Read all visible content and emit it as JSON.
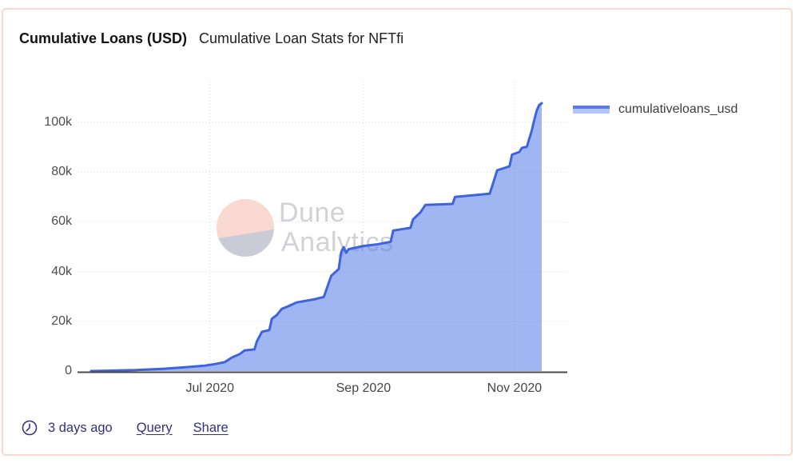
{
  "card": {
    "title": "Cumulative Loans (USD)",
    "subtitle": "Cumulative Loan Stats for NFTfi"
  },
  "legend": {
    "label": "cumulativeloans_usd"
  },
  "watermark": {
    "line1": "Dune",
    "line2": "Analytics"
  },
  "footer": {
    "updated": "3 days ago",
    "query": "Query",
    "share": "Share"
  },
  "colors": {
    "card_border": "#fbd6cd",
    "line": "#3e63dc",
    "fill": "rgba(91,130,234,0.58)",
    "legend_line": "#5b7ce8",
    "legend_fill": "#b3c5f4",
    "footer_text": "#33307e",
    "axis_line": "#4a4a4a",
    "grid_line": "#e2e2e2",
    "tick_label": "#4d4d4d",
    "watermark_pink": "#f9d8d1",
    "watermark_gray": "#c9ccd6",
    "watermark_text": "#d2d2d6"
  },
  "chart_data": {
    "type": "area",
    "title": "Cumulative Loan Stats for NFTfi",
    "series_name": "cumulativeloans_usd",
    "xlabel": "",
    "ylabel": "",
    "grid": true,
    "legend_position": "top-right",
    "x_domain": [
      "2020-05-14",
      "2020-11-12"
    ],
    "ylim": [
      0,
      110000
    ],
    "y_ticks": [
      {
        "label": "100k",
        "value": 100000
      },
      {
        "label": "80k",
        "value": 80000
      },
      {
        "label": "60k",
        "value": 60000
      },
      {
        "label": "40k",
        "value": 40000
      },
      {
        "label": "20k",
        "value": 20000
      },
      {
        "label": "0",
        "value": 0
      }
    ],
    "x_ticks": [
      {
        "label": "Jul 2020",
        "date": "2020-07-01"
      },
      {
        "label": "Sep 2020",
        "date": "2020-09-01"
      },
      {
        "label": "Nov 2020",
        "date": "2020-11-01"
      }
    ],
    "points": [
      [
        "2020-05-14",
        0
      ],
      [
        "2020-06-01",
        400
      ],
      [
        "2020-06-12",
        900
      ],
      [
        "2020-06-21",
        1500
      ],
      [
        "2020-06-29",
        2200
      ],
      [
        "2020-07-03",
        2800
      ],
      [
        "2020-07-07",
        3600
      ],
      [
        "2020-07-10",
        5500
      ],
      [
        "2020-07-13",
        6800
      ],
      [
        "2020-07-15",
        8300
      ],
      [
        "2020-07-19",
        8700
      ],
      [
        "2020-07-20",
        12000
      ],
      [
        "2020-07-22",
        15800
      ],
      [
        "2020-07-25",
        16500
      ],
      [
        "2020-07-26",
        21000
      ],
      [
        "2020-07-28",
        22500
      ],
      [
        "2020-07-30",
        25000
      ],
      [
        "2020-08-02",
        26200
      ],
      [
        "2020-08-05",
        27600
      ],
      [
        "2020-08-12",
        28800
      ],
      [
        "2020-08-16",
        29800
      ],
      [
        "2020-08-18",
        35500
      ],
      [
        "2020-08-19",
        38300
      ],
      [
        "2020-08-22",
        41000
      ],
      [
        "2020-08-23",
        47800
      ],
      [
        "2020-08-24",
        49800
      ],
      [
        "2020-08-25",
        47600
      ],
      [
        "2020-08-26",
        49000
      ],
      [
        "2020-09-01",
        50300
      ],
      [
        "2020-09-07",
        51000
      ],
      [
        "2020-09-12",
        52000
      ],
      [
        "2020-09-13",
        56500
      ],
      [
        "2020-09-20",
        57600
      ],
      [
        "2020-09-21",
        61000
      ],
      [
        "2020-09-24",
        63800
      ],
      [
        "2020-09-26",
        66800
      ],
      [
        "2020-10-07",
        67200
      ],
      [
        "2020-10-08",
        70000
      ],
      [
        "2020-10-22",
        71300
      ],
      [
        "2020-10-24",
        77500
      ],
      [
        "2020-10-25",
        80700
      ],
      [
        "2020-10-30",
        82300
      ],
      [
        "2020-10-31",
        87000
      ],
      [
        "2020-11-03",
        88100
      ],
      [
        "2020-11-04",
        89700
      ],
      [
        "2020-11-06",
        90200
      ],
      [
        "2020-11-08",
        96800
      ],
      [
        "2020-11-09",
        101000
      ],
      [
        "2020-11-10",
        104800
      ],
      [
        "2020-11-11",
        107000
      ],
      [
        "2020-11-12",
        107700
      ]
    ]
  }
}
